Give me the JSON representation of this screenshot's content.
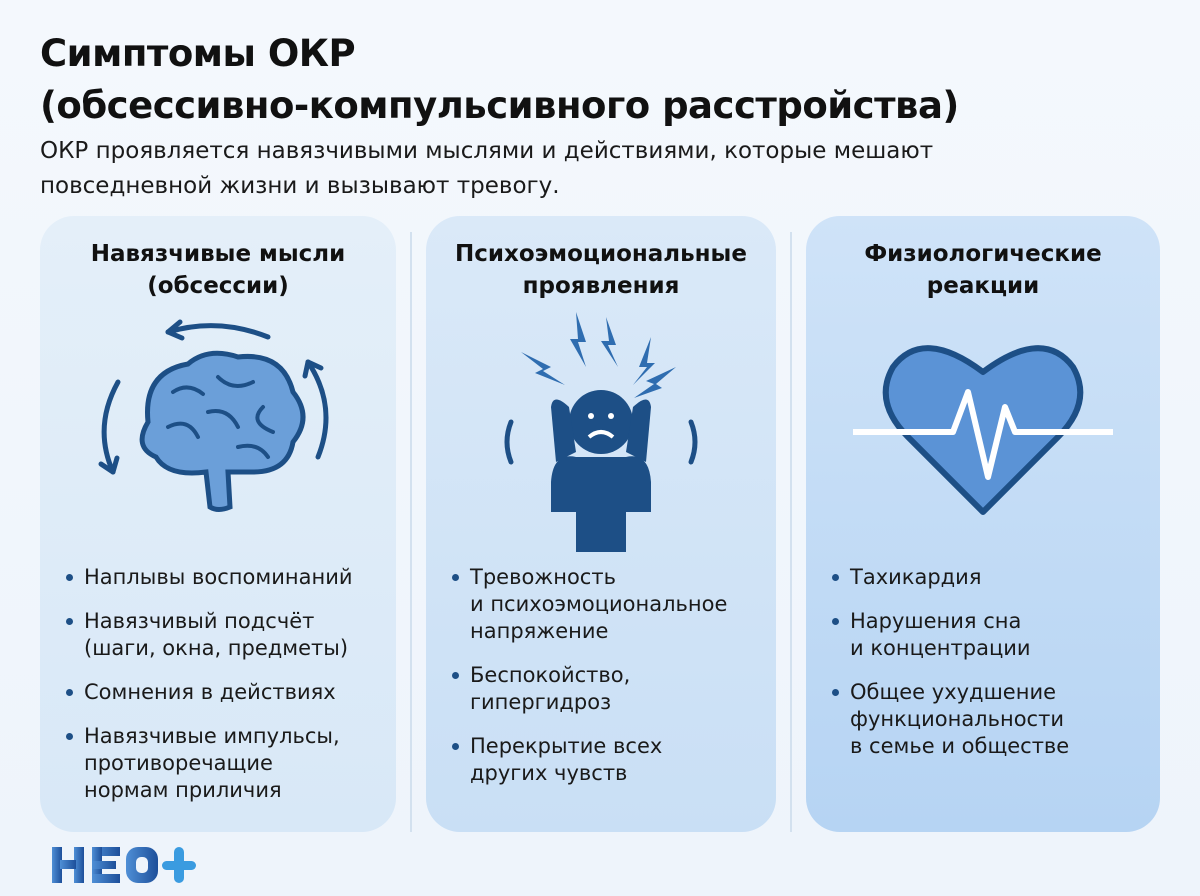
{
  "header": {
    "title_line1": "Симптомы ОКР",
    "title_line2": "(обсессивно-компульсивного расстройства)",
    "subtitle_line1": "ОКР проявляется навязчивыми мыслями и действиями, которые мешают",
    "subtitle_line2": "повседневной жизни и вызывают тревогу."
  },
  "cards": [
    {
      "title_line1": "Навязчивые мысли",
      "title_line2": "(обсессии)",
      "icon": "brain-cycle-icon",
      "items": [
        [
          "Наплывы воспоминаний"
        ],
        [
          "Навязчивый подсчёт",
          "(шаги, окна, предметы)"
        ],
        [
          "Сомнения в действиях"
        ],
        [
          "Навязчивые импульсы,",
          "противоречащие",
          "нормам приличия"
        ]
      ]
    },
    {
      "title_line1": "Психоэмоциональные",
      "title_line2": "проявления",
      "icon": "stressed-person-icon",
      "items": [
        [
          "Тревожность",
          "и психоэмоциональное",
          "напряжение"
        ],
        [
          "Беспокойство,",
          "гипергидроз"
        ],
        [
          "Перекрытие всех",
          "других чувств"
        ]
      ]
    },
    {
      "title_line1": "Физиологические",
      "title_line2": "реакции",
      "icon": "heart-pulse-icon",
      "items": [
        [
          "Тахикардия"
        ],
        [
          "Нарушения сна",
          "и концентрации"
        ],
        [
          "Общее ухудшение",
          "функциональности",
          "в семье и обществе"
        ]
      ]
    }
  ],
  "logo": {
    "text": "НЕО+"
  },
  "colors": {
    "icon": "#3f77b8",
    "icon_dark": "#1d4f86",
    "bullet": "#1d4f86"
  }
}
